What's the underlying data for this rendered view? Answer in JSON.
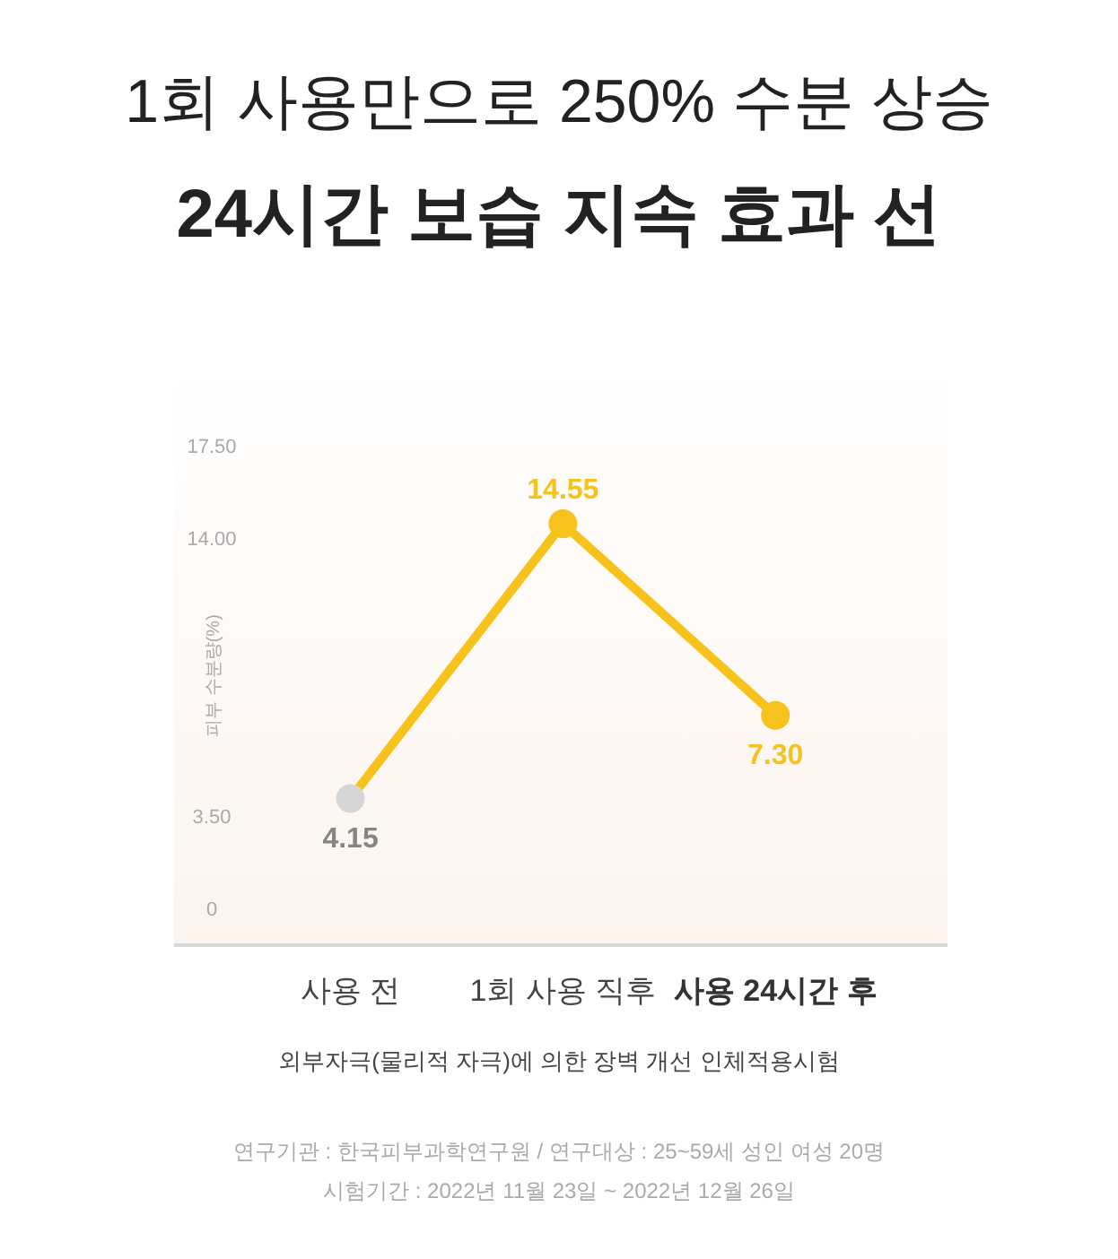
{
  "chart_data": {
    "type": "line",
    "title": "1회 사용만으로 250% 수분 상승",
    "subtitle": "24시간 보습 지속 효과 선",
    "ylabel": "피부 수분량(%)",
    "categories": [
      "사용 전",
      "1회 사용 직후",
      "사용 24시간 후"
    ],
    "series": [
      {
        "color": "#f7c21b",
        "colors": [
          "#d6d6d6",
          "#f7c21b",
          "#f7c21b"
        ],
        "values": [
          4.15,
          14.55,
          7.3
        ],
        "value_labels": [
          "4.15",
          "14.55",
          "7.30"
        ]
      }
    ],
    "ylim": [
      -1.4,
      20.8
    ],
    "yticks": [
      0,
      {
        "value": 3.5,
        "label": "3.50"
      },
      {
        "value": 14,
        "label": "14.00"
      },
      {
        "value": 17.5,
        "label": "17.50"
      }
    ],
    "marker": "circle",
    "grid": false,
    "annotations": [
      "외부자극(물리적 자극)에 의한 장벽 개선 인체적용시험",
      "연구기관 : 한국피부과학연구원 / 연구대상 : 25~59세 성인 여성 20명",
      "시험기간 : 2022년 11월 23일 ~ 2022년 12월 26일"
    ]
  }
}
